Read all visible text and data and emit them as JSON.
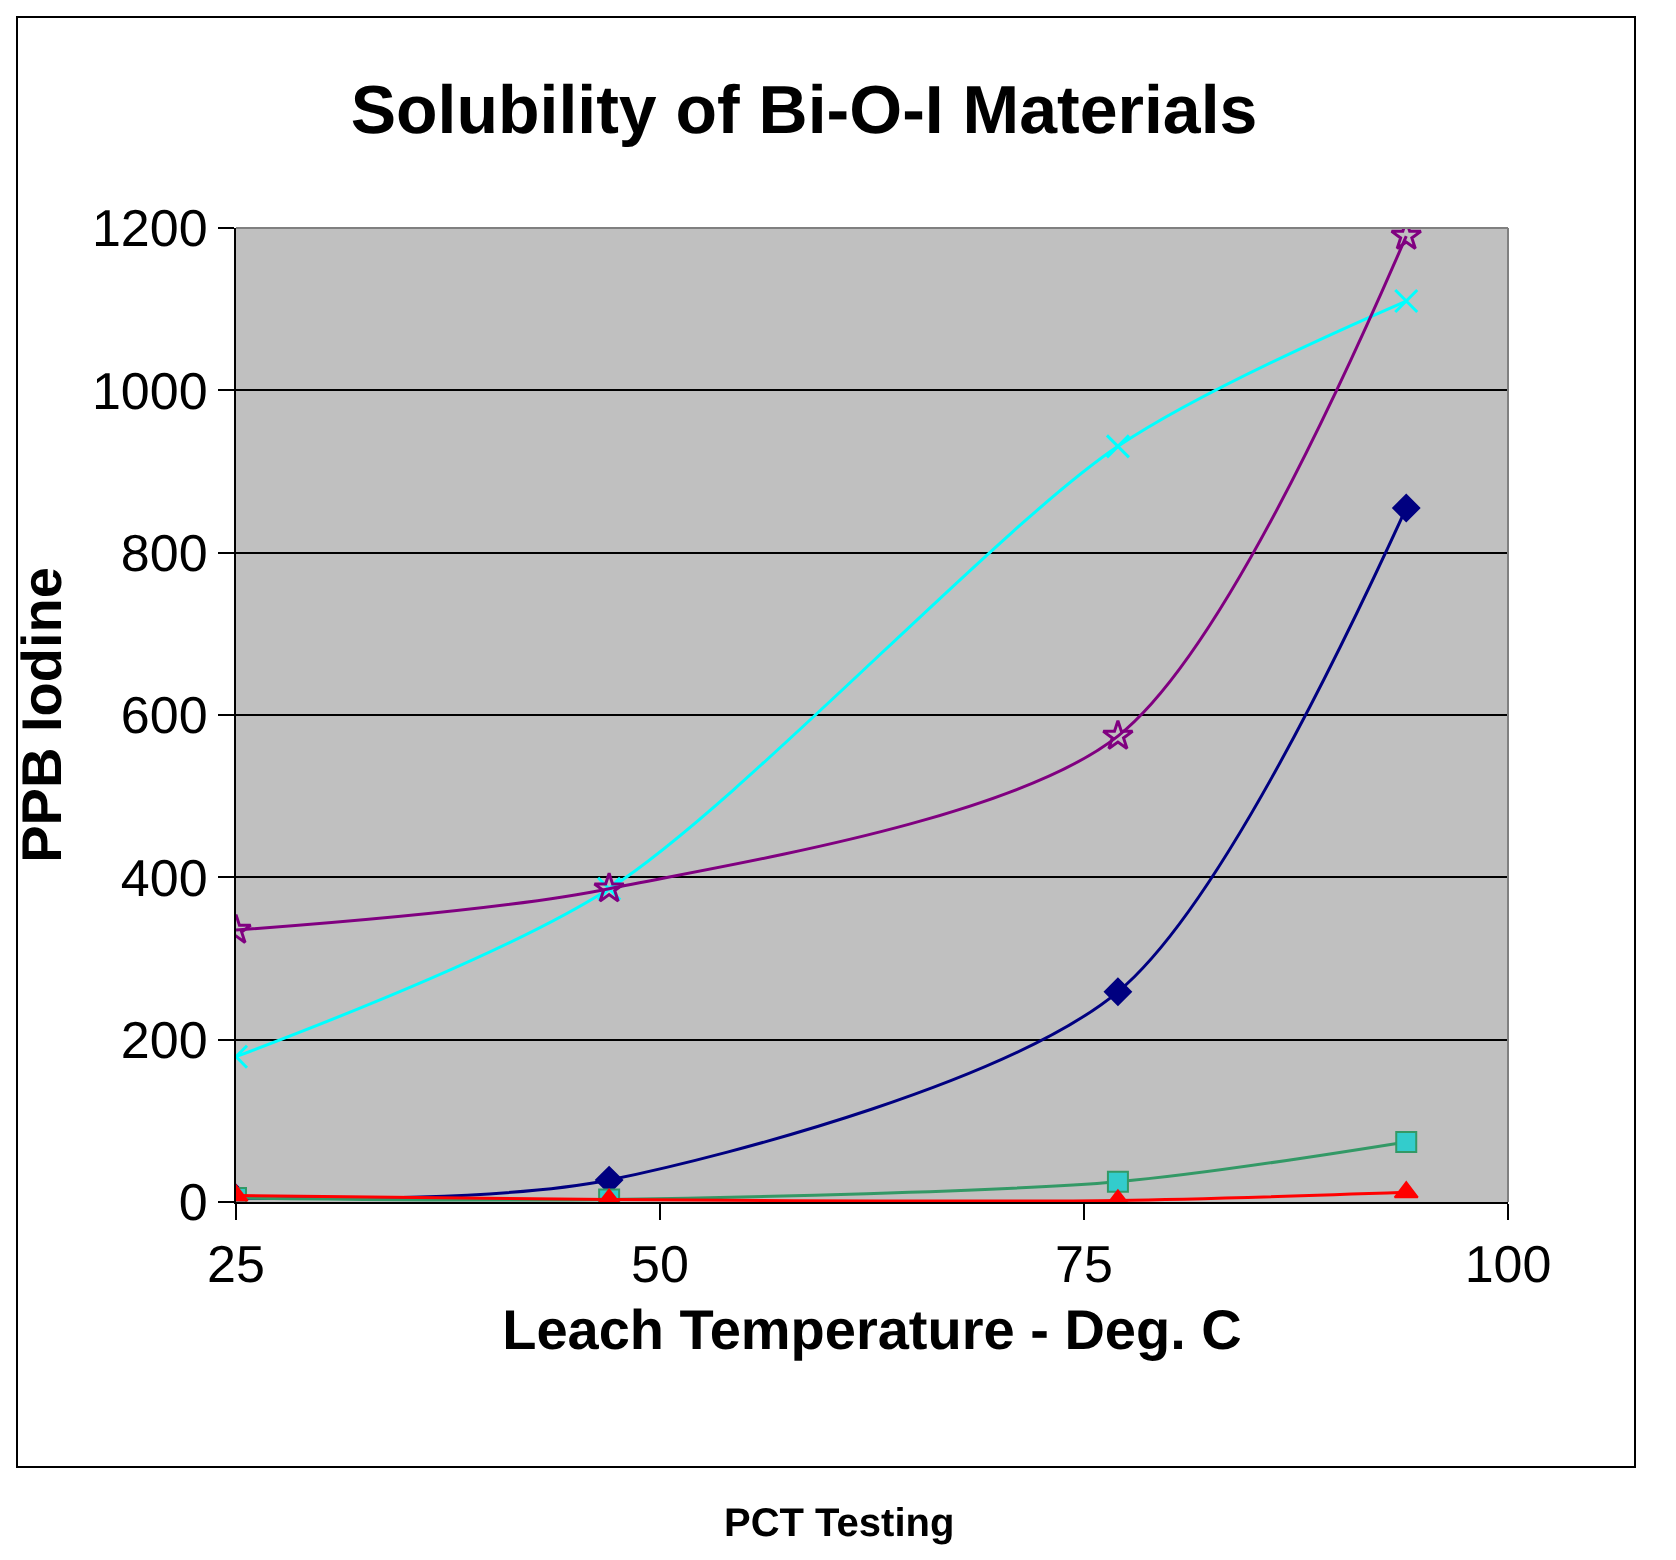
{
  "chart_data": {
    "type": "line",
    "title": "Solubility of Bi-O-I Materials",
    "xlabel": "Leach Temperature - Deg. C",
    "ylabel": "PPB Iodine",
    "annotations": [
      "PCT Testing"
    ],
    "x": [
      25,
      47,
      77,
      94
    ],
    "series": [
      {
        "color": "#000080",
        "marker": "diamond",
        "values": [
          5,
          27,
          259,
          855
        ]
      },
      {
        "color": "#339966",
        "marker": "square",
        "values": [
          5,
          3,
          25,
          74
        ]
      },
      {
        "color": "#ff0000",
        "marker": "triangle",
        "values": [
          8,
          3,
          2,
          12
        ]
      },
      {
        "color": "#00ffff",
        "marker": "cross",
        "values": [
          179,
          386,
          931,
          1110
        ]
      },
      {
        "color": "#800080",
        "marker": "star",
        "values": [
          335,
          386,
          574,
          1190
        ]
      }
    ],
    "xlim": [
      25,
      100
    ],
    "xticks": [
      25,
      50,
      75,
      100
    ],
    "ylim": [
      0,
      1200
    ],
    "yticks": [
      0,
      200,
      400,
      600,
      800,
      1000,
      1200
    ],
    "grid": "y"
  }
}
